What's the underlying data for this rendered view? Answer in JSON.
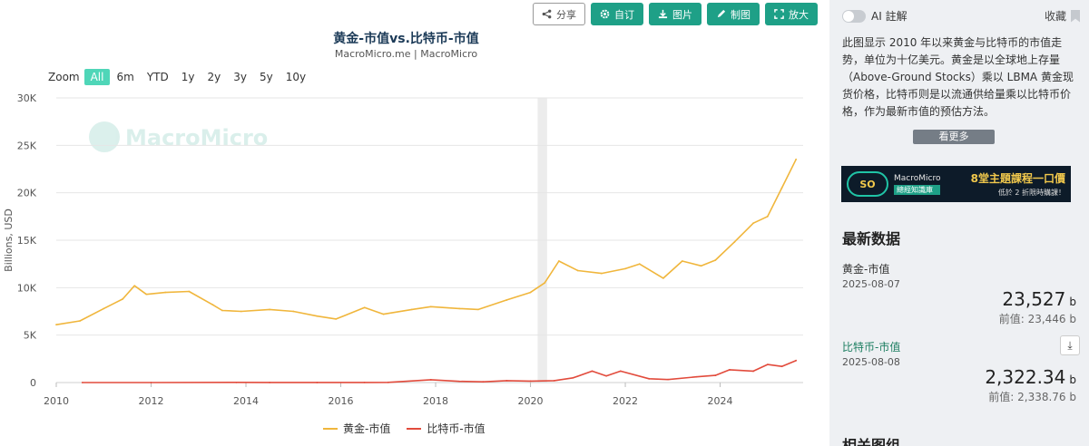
{
  "toolbar": {
    "share": "分享",
    "subscribe": "自订",
    "image": "图片",
    "draw": "制图",
    "zoom": "放大"
  },
  "header": {
    "title": "黄金-市值vs.比特币-市值",
    "subtitle": "MacroMicro.me | MacroMicro"
  },
  "range_selector": {
    "label": "Zoom",
    "options": [
      "All",
      "6m",
      "YTD",
      "1y",
      "2y",
      "3y",
      "5y",
      "10y"
    ],
    "active": "All"
  },
  "watermark": "MacroMicro",
  "chart_data": {
    "type": "line",
    "ylabel": "Billions, USD",
    "ylim": [
      0,
      30000
    ],
    "yticks": [
      0,
      5000,
      10000,
      15000,
      20000,
      25000,
      30000
    ],
    "ytick_labels": [
      "0",
      "5K",
      "10K",
      "15K",
      "20K",
      "25K",
      "30K"
    ],
    "xlim": [
      2010.0,
      2025.75
    ],
    "xticks": [
      2010,
      2012,
      2014,
      2016,
      2018,
      2020,
      2022,
      2024
    ],
    "xtick_labels": [
      "2010",
      "2012",
      "2014",
      "2016",
      "2018",
      "2020",
      "2022",
      "2024"
    ],
    "shaded_band": [
      2020.15,
      2020.35
    ],
    "series": [
      {
        "name": "黄金-市值",
        "color": "#f0b63c",
        "x": [
          2010.0,
          2010.5,
          2011.0,
          2011.4,
          2011.65,
          2011.9,
          2012.3,
          2012.8,
          2013.3,
          2013.5,
          2013.9,
          2014.5,
          2015.0,
          2015.5,
          2015.9,
          2016.5,
          2016.9,
          2017.5,
          2017.9,
          2018.5,
          2018.9,
          2019.5,
          2020.0,
          2020.3,
          2020.6,
          2021.0,
          2021.5,
          2022.0,
          2022.3,
          2022.8,
          2023.2,
          2023.6,
          2023.9,
          2024.3,
          2024.7,
          2025.0,
          2025.3,
          2025.6
        ],
        "y": [
          6100,
          6500,
          7800,
          8800,
          10200,
          9300,
          9500,
          9600,
          8200,
          7600,
          7500,
          7700,
          7500,
          7000,
          6700,
          7900,
          7200,
          7700,
          8000,
          7800,
          7700,
          8700,
          9500,
          10500,
          12800,
          11800,
          11500,
          12000,
          12500,
          11000,
          12800,
          12300,
          12900,
          14800,
          16800,
          17500,
          20500,
          23527
        ]
      },
      {
        "name": "比特币-市值",
        "color": "#e24b3c",
        "x": [
          2010.55,
          2012.0,
          2013.8,
          2014.5,
          2015.5,
          2016.5,
          2017.0,
          2017.9,
          2018.5,
          2019.0,
          2019.5,
          2020.0,
          2020.5,
          2020.9,
          2021.3,
          2021.6,
          2021.9,
          2022.5,
          2022.9,
          2023.5,
          2023.9,
          2024.2,
          2024.7,
          2025.0,
          2025.3,
          2025.6
        ],
        "y": [
          0,
          0,
          15,
          8,
          5,
          10,
          20,
          300,
          120,
          80,
          200,
          150,
          200,
          500,
          1200,
          700,
          1200,
          400,
          320,
          600,
          750,
          1350,
          1200,
          1900,
          1700,
          2322.34
        ]
      }
    ]
  },
  "legend": [
    {
      "label": "黄金-市值",
      "color": "#f0b63c"
    },
    {
      "label": "比特币-市值",
      "color": "#e24b3c"
    }
  ],
  "side": {
    "ai_label": "AI 註解",
    "collect_label": "收藏",
    "description": "此图显示 2010 年以来黄金与比特币的市值走势，单位为十亿美元。黄金是以全球地上存量（Above-Ground Stocks）乘以 LBMA 黄金现货价格，比特币则是以流通供给量乘以比特币价格，作为最新市值的预估方法。",
    "more_label": "看更多",
    "banner": {
      "logo": "SO",
      "brand": "MacroMicro",
      "tag": "總經知識庫",
      "title": "8堂主題課程一口價",
      "subtitle": "低於 2 折限時購課！"
    },
    "latest_title": "最新数据",
    "series": [
      {
        "name": "黄金-市值",
        "date": "2025-08-07",
        "value": "23,527",
        "unit": "b",
        "prev": "前值: 23,446 b"
      },
      {
        "name": "比特币-市值",
        "date": "2025-08-08",
        "value": "2,322.34",
        "unit": "b",
        "prev": "前值: 2,338.76 b"
      }
    ],
    "related_title": "相关图组"
  }
}
